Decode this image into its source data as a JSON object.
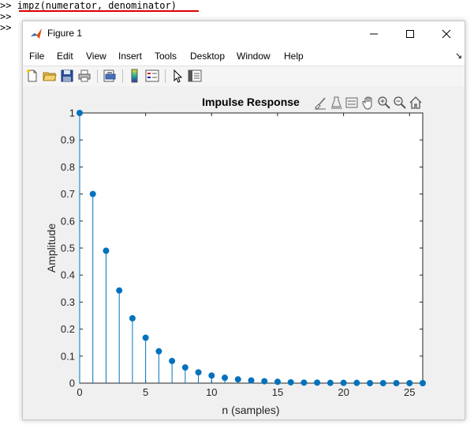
{
  "command_window": {
    "prompt": ">>",
    "command": "impz(numerator, denominator)"
  },
  "window": {
    "title": "Figure 1",
    "minimize_glyph": "—",
    "maximize_glyph": "☐",
    "close_glyph": "✕"
  },
  "menu": [
    "File",
    "Edit",
    "View",
    "Insert",
    "Tools",
    "Desktop",
    "Window",
    "Help"
  ],
  "menu_dock_glyph": "↘",
  "toolbar_icons": [
    "new-figure-icon",
    "open-file-icon",
    "save-icon",
    "print-icon",
    "print-preview-icon",
    "colorbar-icon",
    "legend-icon",
    "edit-plot-icon",
    "property-inspector-icon"
  ],
  "axes_toolbar_icons": [
    "brush-icon",
    "data-tips-icon",
    "data-cursor-icon",
    "pan-icon",
    "zoom-in-icon",
    "zoom-out-icon",
    "home-icon"
  ],
  "colors": {
    "stem": "#0072BD",
    "figure_bg": "#f0f0f0",
    "axes_bg": "#ffffff"
  },
  "chart_data": {
    "type": "stem",
    "title": "Impulse Response",
    "xlabel": "n (samples)",
    "ylabel": "Amplitude",
    "xlim": [
      0,
      26
    ],
    "ylim": [
      0,
      1
    ],
    "xticks": [
      0,
      5,
      10,
      15,
      20,
      25
    ],
    "yticks": [
      0,
      0.1,
      0.2,
      0.3,
      0.4,
      0.5,
      0.6,
      0.7,
      0.8,
      0.9,
      1
    ],
    "ytick_labels": [
      "0",
      "0.1",
      "0.2",
      "0.3",
      "0.4",
      "0.5",
      "0.6",
      "0.7",
      "0.8",
      "0.9",
      "1"
    ],
    "grid": false,
    "x": [
      0,
      1,
      2,
      3,
      4,
      5,
      6,
      7,
      8,
      9,
      10,
      11,
      12,
      13,
      14,
      15,
      16,
      17,
      18,
      19,
      20,
      21,
      22,
      23,
      24,
      25,
      26
    ],
    "y": [
      1,
      0.7,
      0.49,
      0.343,
      0.24,
      0.168,
      0.118,
      0.082,
      0.058,
      0.04,
      0.028,
      0.02,
      0.014,
      0.01,
      0.007,
      0.005,
      0.003,
      0.002,
      0.002,
      0.001,
      0.001,
      0.001,
      0,
      0,
      0,
      0,
      0
    ]
  }
}
